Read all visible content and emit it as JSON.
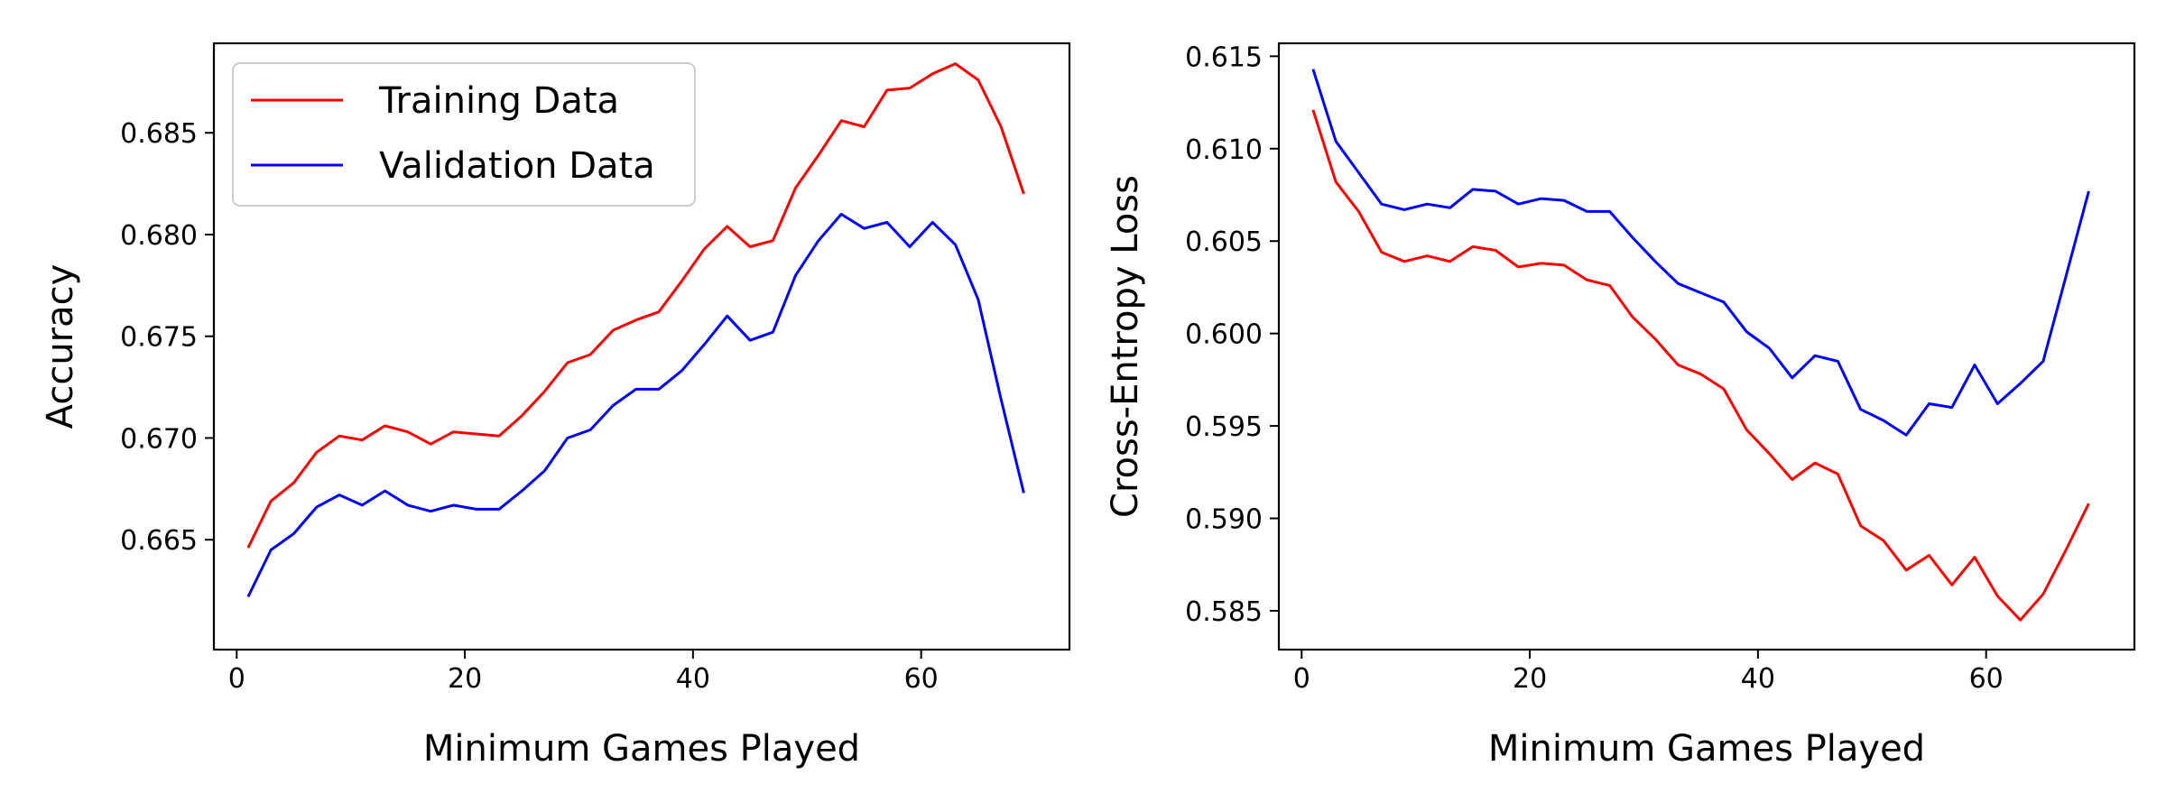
{
  "chart_data": [
    {
      "type": "line",
      "xlabel": "Minimum Games Played",
      "ylabel": "Accuracy",
      "xlim": [
        -2,
        73
      ],
      "ylim": [
        0.6596,
        0.6894
      ],
      "xticks": [
        0,
        20,
        40,
        60
      ],
      "yticks": [
        0.665,
        0.67,
        0.675,
        0.68,
        0.685
      ],
      "ytick_labels": [
        "0.665",
        "0.670",
        "0.675",
        "0.680",
        "0.685"
      ],
      "grid": false,
      "legend": "upper-left",
      "x": [
        1,
        3,
        5,
        7,
        9,
        11,
        13,
        15,
        17,
        19,
        21,
        23,
        25,
        27,
        29,
        31,
        33,
        35,
        37,
        39,
        41,
        43,
        45,
        47,
        49,
        51,
        53,
        55,
        57,
        59,
        61,
        63,
        65,
        67,
        69
      ],
      "series": [
        {
          "name": "Training Data",
          "color": "#ff0000",
          "values": [
            0.6646,
            0.6669,
            0.6678,
            0.6693,
            0.6701,
            0.6699,
            0.6706,
            0.6703,
            0.6697,
            0.6703,
            0.6702,
            0.6701,
            0.6711,
            0.6723,
            0.6737,
            0.6741,
            0.6753,
            0.6758,
            0.6762,
            0.6777,
            0.6793,
            0.6804,
            0.6794,
            0.6797,
            0.6823,
            0.6839,
            0.6856,
            0.6853,
            0.6871,
            0.6872,
            0.6879,
            0.6884,
            0.6876,
            0.6853,
            0.682
          ]
        },
        {
          "name": "Validation Data",
          "color": "#0000ff",
          "values": [
            0.6622,
            0.6645,
            0.6653,
            0.6666,
            0.6672,
            0.6667,
            0.6674,
            0.6667,
            0.6664,
            0.6667,
            0.6665,
            0.6665,
            0.6674,
            0.6684,
            0.67,
            0.6704,
            0.6716,
            0.6724,
            0.6724,
            0.6733,
            0.6746,
            0.676,
            0.6748,
            0.6752,
            0.678,
            0.6797,
            0.681,
            0.6803,
            0.6806,
            0.6794,
            0.6806,
            0.6795,
            0.6768,
            0.6719,
            0.6673
          ]
        }
      ]
    },
    {
      "type": "line",
      "xlabel": "Minimum Games Played",
      "ylabel": "Cross-Entropy Loss",
      "xlim": [
        -2,
        73
      ],
      "ylim": [
        0.5829,
        0.6157
      ],
      "xticks": [
        0,
        20,
        40,
        60
      ],
      "yticks": [
        0.585,
        0.59,
        0.595,
        0.6,
        0.605,
        0.61,
        0.615
      ],
      "ytick_labels": [
        "0.585",
        "0.590",
        "0.595",
        "0.600",
        "0.605",
        "0.610",
        "0.615"
      ],
      "grid": false,
      "x": [
        1,
        3,
        5,
        7,
        9,
        11,
        13,
        15,
        17,
        19,
        21,
        23,
        25,
        27,
        29,
        31,
        33,
        35,
        37,
        39,
        41,
        43,
        45,
        47,
        49,
        51,
        53,
        55,
        57,
        59,
        61,
        63,
        65,
        67,
        69
      ],
      "series": [
        {
          "name": "Training Data",
          "color": "#ff0000",
          "values": [
            0.6121,
            0.6082,
            0.6066,
            0.6044,
            0.6039,
            0.6042,
            0.6039,
            0.6047,
            0.6045,
            0.6036,
            0.6038,
            0.6037,
            0.6029,
            0.6026,
            0.6009,
            0.5997,
            0.5983,
            0.5978,
            0.597,
            0.5948,
            0.5935,
            0.5921,
            0.593,
            0.5924,
            0.5896,
            0.5888,
            0.5872,
            0.588,
            0.5864,
            0.5879,
            0.5858,
            0.5845,
            0.5859,
            0.5883,
            0.5908
          ]
        },
        {
          "name": "Validation Data",
          "color": "#0000ff",
          "values": [
            0.6143,
            0.6104,
            0.6087,
            0.607,
            0.6067,
            0.607,
            0.6068,
            0.6078,
            0.6077,
            0.607,
            0.6073,
            0.6072,
            0.6066,
            0.6066,
            0.6052,
            0.6039,
            0.6027,
            0.6022,
            0.6017,
            0.6001,
            0.5992,
            0.5976,
            0.5988,
            0.5985,
            0.5959,
            0.5953,
            0.5945,
            0.5962,
            0.596,
            0.5983,
            0.5962,
            0.5973,
            0.5985,
            0.6031,
            0.6077
          ]
        }
      ]
    }
  ]
}
